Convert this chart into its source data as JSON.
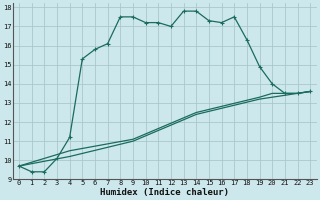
{
  "title": "",
  "xlabel": "Humidex (Indice chaleur)",
  "bg_color": "#cde8ec",
  "grid_color": "#aac8cc",
  "line_color": "#1a6b60",
  "xlim": [
    -0.5,
    23.5
  ],
  "ylim": [
    9,
    18.2
  ],
  "xticks": [
    0,
    1,
    2,
    3,
    4,
    5,
    6,
    7,
    8,
    9,
    10,
    11,
    12,
    13,
    14,
    15,
    16,
    17,
    18,
    19,
    20,
    21,
    22,
    23
  ],
  "yticks": [
    9,
    10,
    11,
    12,
    13,
    14,
    15,
    16,
    17,
    18
  ],
  "line1_x": [
    0,
    1,
    2,
    3,
    4,
    5,
    6,
    7,
    8,
    9,
    10,
    11,
    12,
    13,
    14,
    15,
    16,
    17,
    18,
    19,
    20,
    21,
    22,
    23
  ],
  "line1_y": [
    9.7,
    9.4,
    9.4,
    10.1,
    11.2,
    15.3,
    15.8,
    16.1,
    17.5,
    17.5,
    17.2,
    17.2,
    17.0,
    17.8,
    17.8,
    17.3,
    17.2,
    17.5,
    16.3,
    14.9,
    14.0,
    13.5,
    13.5,
    13.6
  ],
  "line2_x": [
    0,
    4,
    9,
    14,
    19,
    22,
    23
  ],
  "line2_y": [
    9.7,
    10.2,
    11.0,
    12.4,
    13.2,
    13.5,
    13.6
  ],
  "line3_x": [
    0,
    4,
    9,
    14,
    19,
    20,
    21,
    22,
    23
  ],
  "line3_y": [
    9.7,
    10.5,
    11.1,
    12.5,
    13.3,
    13.5,
    13.5,
    13.5,
    13.6
  ],
  "font_size_tick": 5.0,
  "font_size_xlabel": 6.5
}
